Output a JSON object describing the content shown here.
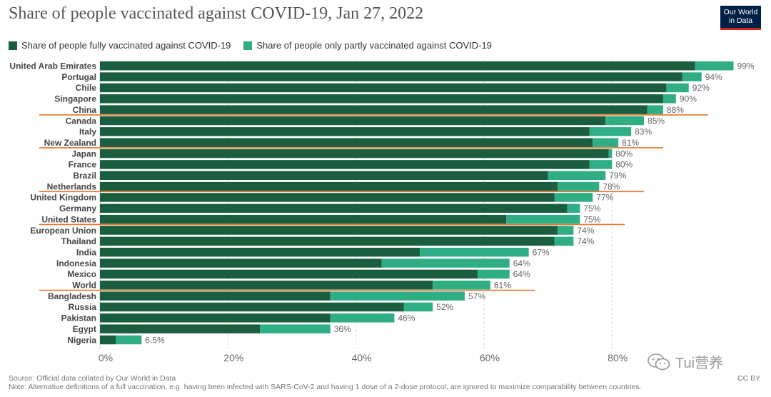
{
  "header": {
    "title": "Share of people vaccinated against COVID-19, Jan 27, 2022",
    "logo_line1": "Our World",
    "logo_line2": "in Data"
  },
  "colors": {
    "full": "#1b5e3f",
    "partial": "#2fae85",
    "highlight_line": "#e8742c",
    "grid": "#d4d4d4",
    "logo_bg": "#002147",
    "logo_accent": "#ce261e"
  },
  "chart_data": {
    "type": "bar",
    "orientation": "horizontal",
    "stacked": true,
    "title": "Share of people vaccinated against COVID-19, Jan 27, 2022",
    "xlim": [
      0,
      100
    ],
    "x_ticks": [
      "0%",
      "20%",
      "40%",
      "60%",
      "80%"
    ],
    "x_tick_values": [
      0,
      20,
      40,
      60,
      80
    ],
    "grid": "vertical-dashed",
    "legend_position": "top-left",
    "categories": [
      "United Arab Emirates",
      "Portugal",
      "Chile",
      "Singapore",
      "China",
      "Canada",
      "Italy",
      "New Zealand",
      "Japan",
      "France",
      "Brazil",
      "Netherlands",
      "United Kingdom",
      "Germany",
      "United States",
      "European Union",
      "Thailand",
      "India",
      "Indonesia",
      "Mexico",
      "World",
      "Bangladesh",
      "Russia",
      "Pakistan",
      "Egypt",
      "Nigeria"
    ],
    "series": [
      {
        "name": "Share of people fully vaccinated against COVID-19",
        "values": [
          93,
          91,
          88.5,
          88,
          85.5,
          79,
          76.5,
          77,
          79.5,
          76.5,
          70,
          71.5,
          71,
          73,
          63.5,
          71.5,
          71,
          50,
          44,
          59,
          52,
          36,
          47.5,
          36,
          25,
          2.5
        ]
      },
      {
        "name": "Share of people only partly vaccinated against COVID-19",
        "values": [
          6,
          3,
          3.5,
          2,
          2.5,
          6,
          6.5,
          4,
          0.5,
          3.5,
          9,
          6.5,
          6,
          2,
          11.5,
          2.5,
          3,
          17,
          20,
          5,
          9,
          21,
          4.5,
          10,
          11,
          4
        ]
      }
    ],
    "totals": [
      "99%",
      "94%",
      "92%",
      "90%",
      "88%",
      "85%",
      "83%",
      "81%",
      "80%",
      "80%",
      "79%",
      "78%",
      "77%",
      "75%",
      "75%",
      "74%",
      "74%",
      "67%",
      "64%",
      "64%",
      "61%",
      "57%",
      "52%",
      "46%",
      "36%",
      "6.5%"
    ],
    "highlighted": [
      "China",
      "New Zealand",
      "Netherlands",
      "United States",
      "World"
    ]
  },
  "footer": {
    "source": "Source: Official data collated by Our World in Data",
    "note": "Note: Alternative definitions of a full vaccination, e.g. having been infected with SARS-CoV-2 and having 1 dose of a 2-dose protocol, are ignored to maximize comparability between countries.",
    "license": "CC BY"
  },
  "watermark": {
    "text": "Tui营养",
    "icon": "wechat-icon"
  }
}
